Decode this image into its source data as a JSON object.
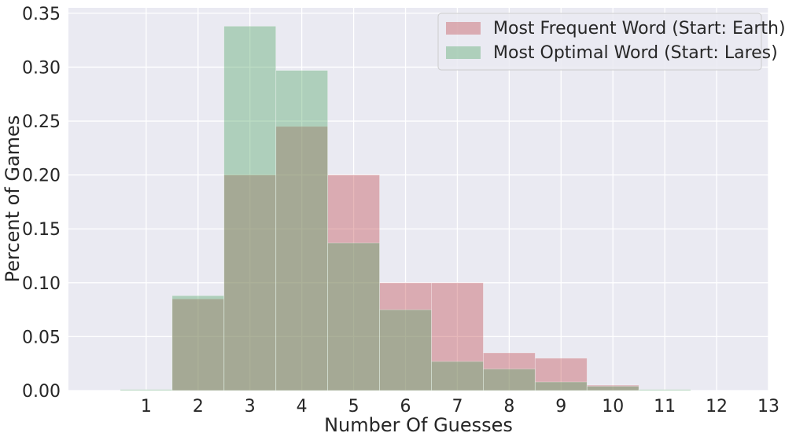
{
  "chart_data": {
    "type": "bar",
    "title": "",
    "xlabel": "Number Of Guesses",
    "ylabel": "Percent of Games",
    "x": [
      1,
      2,
      3,
      4,
      5,
      6,
      7,
      8,
      9,
      10,
      11,
      12,
      13
    ],
    "xlim": [
      -0.5,
      13
    ],
    "ylim": [
      0,
      0.355
    ],
    "yticks": [
      "0.00",
      "0.05",
      "0.10",
      "0.15",
      "0.20",
      "0.25",
      "0.30",
      "0.35"
    ],
    "xticks": [
      "1",
      "2",
      "3",
      "4",
      "5",
      "6",
      "7",
      "8",
      "9",
      "10",
      "11",
      "12",
      "13"
    ],
    "grid": true,
    "legend_position": "top-right",
    "series": [
      {
        "name": "Most Frequent Word (Start: Earth)",
        "color": "#c44e52",
        "alpha": 0.4,
        "values": [
          0,
          0.085,
          0.2,
          0.245,
          0.2,
          0.1,
          0.1,
          0.035,
          0.03,
          0.005,
          0,
          0,
          0
        ]
      },
      {
        "name": "Most Optimal Word (Start: Lares)",
        "color": "#55a868",
        "alpha": 0.4,
        "values": [
          0.001,
          0.088,
          0.338,
          0.297,
          0.137,
          0.075,
          0.027,
          0.02,
          0.008,
          0.004,
          0.001,
          0,
          0
        ]
      }
    ]
  }
}
